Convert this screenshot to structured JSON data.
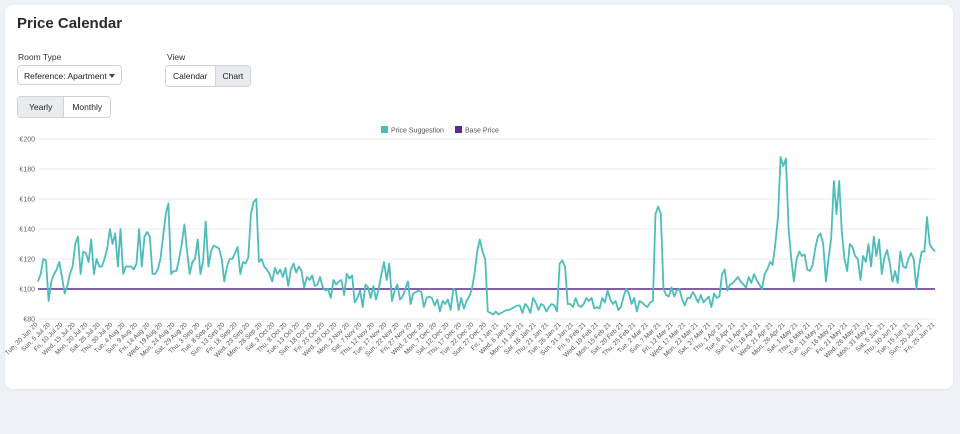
{
  "page": {
    "title": "Price Calendar"
  },
  "filters": {
    "room_type_label": "Room Type",
    "room_type_value": "Reference: Apartment",
    "view_label": "View",
    "view_options": [
      "Calendar",
      "Chart"
    ],
    "view_selected": "Chart",
    "period_options": [
      "Yearly",
      "Monthly"
    ],
    "period_selected": "Yearly"
  },
  "chart_data": {
    "type": "line",
    "title": "",
    "legend_position": "top-center",
    "ylim": [
      80,
      200
    ],
    "y_ticks": [
      "€80",
      "€100",
      "€120",
      "€140",
      "€160",
      "€180",
      "€200"
    ],
    "x_tick_labels": [
      "Tue, 30 Jun 20",
      "Sun, 5 Jul 20",
      "Fri, 10 Jul 20",
      "Wed, 15 Jul 20",
      "Mon, 20 Jul 20",
      "Sat, 25 Jul 20",
      "Thu, 30 Jul 20",
      "Tue, 4 Aug 20",
      "Sun, 9 Aug 20",
      "Fri, 14 Aug 20",
      "Wed, 19 Aug 20",
      "Mon, 24 Aug 20",
      "Sat, 29 Aug 20",
      "Thu, 3 Sep 20",
      "Tue, 8 Sep 20",
      "Sun, 13 Sep 20",
      "Fri, 18 Sep 20",
      "Wed, 23 Sep 20",
      "Mon, 28 Sep 20",
      "Sat, 3 Oct 20",
      "Thu, 8 Oct 20",
      "Tue, 13 Oct 20",
      "Sun, 18 Oct 20",
      "Fri, 23 Oct 20",
      "Wed, 28 Oct 20",
      "Mon, 2 Nov 20",
      "Sat, 7 Nov 20",
      "Thu, 12 Nov 20",
      "Tue, 17 Nov 20",
      "Sun, 22 Nov 20",
      "Fri, 27 Nov 20",
      "Wed, 2 Dec 20",
      "Mon, 7 Dec 20",
      "Sat, 12 Dec 20",
      "Thu, 17 Dec 20",
      "Tue, 22 Dec 20",
      "Sun, 27 Dec 20",
      "Fri, 1 Jan 21",
      "Wed, 6 Jan 21",
      "Mon, 11 Jan 21",
      "Sat, 16 Jan 21",
      "Thu, 21 Jan 21",
      "Tue, 26 Jan 21",
      "Sun, 31 Jan 21",
      "Fri, 5 Feb 21",
      "Wed, 10 Feb 21",
      "Mon, 15 Feb 21",
      "Sat, 20 Feb 21",
      "Thu, 25 Feb 21",
      "Tue, 2 Mar 21",
      "Sun, 7 Mar 21",
      "Fri, 12 Mar 21",
      "Wed, 17 Mar 21",
      "Mon, 22 Mar 21",
      "Sat, 27 Mar 21",
      "Thu, 1 Apr 21",
      "Tue, 6 Apr 21",
      "Sun, 11 Apr 21",
      "Fri, 16 Apr 21",
      "Wed, 21 Apr 21",
      "Mon, 26 Apr 21",
      "Sat, 1 May 21",
      "Thu, 6 May 21",
      "Tue, 11 May 21",
      "Sun, 16 May 21",
      "Fri, 21 May 21",
      "Wed, 26 May 21",
      "Mon, 31 May 21",
      "Sat, 5 Jun 21",
      "Thu, 10 Jun 21",
      "Tue, 15 Jun 21",
      "Sun, 20 Jun 21",
      "Fri, 25 Jun 21"
    ],
    "series": [
      {
        "name": "Price Suggestion",
        "color": "#4dbdbb",
        "values": [
          105,
          110,
          120,
          119,
          92,
          105,
          110,
          113,
          118,
          108,
          97,
          102,
          110,
          115,
          130,
          135,
          110,
          125,
          124,
          118,
          133,
          110,
          120,
          115,
          115,
          120,
          127,
          140,
          130,
          137,
          115,
          140,
          110,
          115,
          115,
          115,
          113,
          117,
          140,
          115,
          135,
          138,
          135,
          110,
          110,
          113,
          120,
          135,
          150,
          157,
          110,
          112,
          112,
          120,
          130,
          143,
          125,
          110,
          118,
          120,
          133,
          110,
          118,
          145,
          115,
          125,
          129,
          128,
          127,
          120,
          105,
          115,
          120,
          120,
          124,
          128,
          110,
          118,
          117,
          121,
          150,
          158,
          160,
          118,
          120,
          115,
          113,
          110,
          105,
          114,
          110,
          113,
          108,
          114,
          102,
          113,
          117,
          111,
          115,
          112,
          101,
          108,
          106,
          109,
          102,
          103,
          108,
          101,
          99,
          100,
          94,
          106,
          103,
          105,
          106,
          96,
          110,
          107,
          109,
          91,
          94,
          99,
          88,
          103,
          101,
          94,
          102,
          93,
          100,
          110,
          118,
          106,
          117,
          92,
          99,
          103,
          93,
          95,
          100,
          105,
          90,
          97,
          98,
          99,
          98,
          88,
          94,
          95,
          94,
          89,
          93,
          85,
          92,
          90,
          93,
          86,
          100,
          99,
          86,
          94,
          87,
          92,
          95,
          100,
          110,
          125,
          133,
          125,
          120,
          85,
          84,
          83,
          85,
          83,
          84,
          85,
          86,
          86,
          87,
          88,
          89,
          89,
          84,
          90,
          88,
          84,
          94,
          91,
          86,
          90,
          89,
          85,
          88,
          90,
          89,
          85,
          117,
          119,
          115,
          90,
          90,
          88,
          94,
          89,
          88,
          90,
          94,
          92,
          94,
          87,
          88,
          87,
          94,
          91,
          99,
          93,
          90,
          92,
          86,
          88,
          95,
          100,
          97,
          90,
          94,
          85,
          92,
          91,
          89,
          88,
          91,
          92,
          150,
          155,
          150,
          100,
          96,
          95,
          101,
          95,
          99,
          100,
          93,
          89,
          94,
          94,
          98,
          95,
          91,
          96,
          91,
          93,
          95,
          88,
          97,
          94,
          95,
          110,
          113,
          99,
          103,
          104,
          106,
          108,
          105,
          103,
          101,
          108,
          104,
          110,
          106,
          103,
          100,
          110,
          113,
          118,
          116,
          130,
          148,
          188,
          182,
          187,
          140,
          120,
          105,
          120,
          125,
          122,
          123,
          113,
          112,
          116,
          127,
          135,
          137,
          130,
          105,
          120,
          134,
          172,
          150,
          172,
          138,
          120,
          112,
          130,
          128,
          122,
          120,
          106,
          122,
          118,
          130,
          115,
          135,
          122,
          133,
          110,
          121,
          126,
          117,
          105,
          112,
          104,
          125,
          115,
          114,
          120,
          124,
          120,
          100,
          115,
          125,
          125,
          148,
          130,
          127,
          125
        ]
      },
      {
        "name": "Base Price",
        "color": "#5b2a86",
        "values": [
          100,
          100
        ]
      }
    ]
  }
}
